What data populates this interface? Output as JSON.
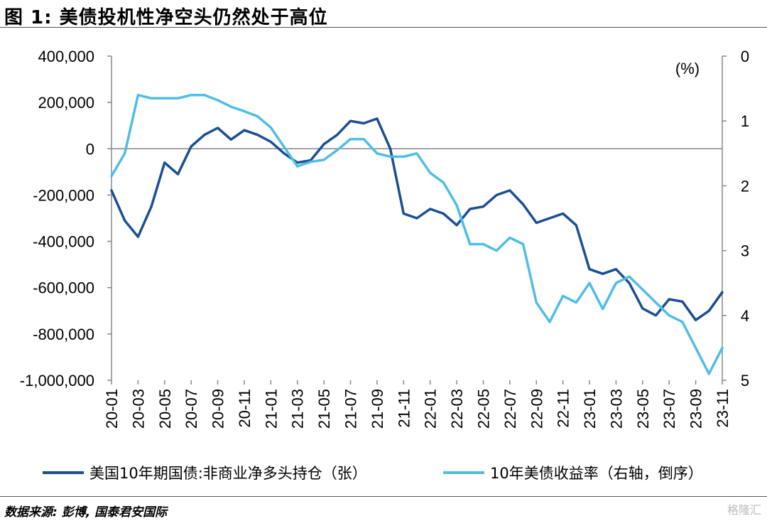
{
  "title": "图 1:  美债投机性净空头仍然处于高位",
  "source": "数据来源:  彭博, 国泰君安国际",
  "watermark": "格隆汇",
  "colors": {
    "positions": "#1a4f94",
    "yield": "#4fbde8",
    "axis": "#888888"
  },
  "chart_data": {
    "type": "line",
    "title": "",
    "left_axis": {
      "ylim": [
        -1000000,
        400000
      ],
      "ticks": [
        -1000000,
        -800000,
        -600000,
        -400000,
        -200000,
        0,
        200000,
        400000
      ],
      "tick_labels": [
        "-1,000,000",
        "-800,000",
        "-600,000",
        "-400,000",
        "-200,000",
        "0",
        "200,000",
        "400,000"
      ]
    },
    "right_axis": {
      "unit_label": "(%)",
      "ylim": [
        0,
        5
      ],
      "inverted": true,
      "ticks": [
        0,
        1,
        2,
        3,
        4,
        5
      ],
      "tick_labels": [
        "0",
        "1",
        "2",
        "3",
        "4",
        "5"
      ]
    },
    "x_ticks": [
      "20-01",
      "20-03",
      "20-05",
      "20-07",
      "20-09",
      "20-11",
      "21-01",
      "21-03",
      "21-05",
      "21-07",
      "21-09",
      "21-11",
      "22-01",
      "22-03",
      "22-05",
      "22-07",
      "22-09",
      "22-11",
      "23-01",
      "23-03",
      "23-05",
      "23-07",
      "23-09",
      "23-11"
    ],
    "series": [
      {
        "name": "美国10年期国债:非商业净多头持仓（张）",
        "axis": "left",
        "x": [
          "20-01",
          "20-02",
          "20-03",
          "20-04",
          "20-05",
          "20-06",
          "20-07",
          "20-08",
          "20-09",
          "20-10",
          "20-11",
          "20-12",
          "21-01",
          "21-02",
          "21-03",
          "21-04",
          "21-05",
          "21-06",
          "21-07",
          "21-08",
          "21-09",
          "21-10",
          "21-11",
          "21-12",
          "22-01",
          "22-02",
          "22-03",
          "22-04",
          "22-05",
          "22-06",
          "22-07",
          "22-08",
          "22-09",
          "22-10",
          "22-11",
          "22-12",
          "23-01",
          "23-02",
          "23-03",
          "23-04",
          "23-05",
          "23-06",
          "23-07",
          "23-08",
          "23-09",
          "23-10",
          "23-11"
        ],
        "values": [
          -180000,
          -310000,
          -380000,
          -250000,
          -60000,
          -110000,
          10000,
          60000,
          90000,
          40000,
          80000,
          60000,
          30000,
          -20000,
          -60000,
          -50000,
          20000,
          60000,
          120000,
          110000,
          130000,
          0,
          -280000,
          -300000,
          -260000,
          -280000,
          -330000,
          -260000,
          -250000,
          -200000,
          -180000,
          -240000,
          -320000,
          -300000,
          -280000,
          -330000,
          -520000,
          -540000,
          -520000,
          -580000,
          -690000,
          -720000,
          -650000,
          -660000,
          -740000,
          -700000,
          -620000
        ]
      },
      {
        "name": "10年美债收益率（右轴，倒序）",
        "axis": "right",
        "x": [
          "20-01",
          "20-02",
          "20-03",
          "20-04",
          "20-05",
          "20-06",
          "20-07",
          "20-08",
          "20-09",
          "20-10",
          "20-11",
          "20-12",
          "21-01",
          "21-02",
          "21-03",
          "21-04",
          "21-05",
          "21-06",
          "21-07",
          "21-08",
          "21-09",
          "21-10",
          "21-11",
          "21-12",
          "22-01",
          "22-02",
          "22-03",
          "22-04",
          "22-05",
          "22-06",
          "22-07",
          "22-08",
          "22-09",
          "22-10",
          "22-11",
          "22-12",
          "23-01",
          "23-02",
          "23-03",
          "23-04",
          "23-05",
          "23-06",
          "23-07",
          "23-08",
          "23-09",
          "23-10",
          "23-11"
        ],
        "values": [
          1.85,
          1.5,
          0.6,
          0.65,
          0.65,
          0.65,
          0.6,
          0.6,
          0.68,
          0.78,
          0.85,
          0.93,
          1.1,
          1.4,
          1.7,
          1.63,
          1.6,
          1.45,
          1.28,
          1.28,
          1.5,
          1.55,
          1.55,
          1.5,
          1.8,
          1.95,
          2.3,
          2.9,
          2.9,
          3.0,
          2.8,
          2.9,
          3.8,
          4.1,
          3.7,
          3.8,
          3.5,
          3.9,
          3.5,
          3.4,
          3.6,
          3.8,
          4.0,
          4.1,
          4.5,
          4.9,
          4.5
        ]
      }
    ],
    "legend_position": "bottom"
  }
}
